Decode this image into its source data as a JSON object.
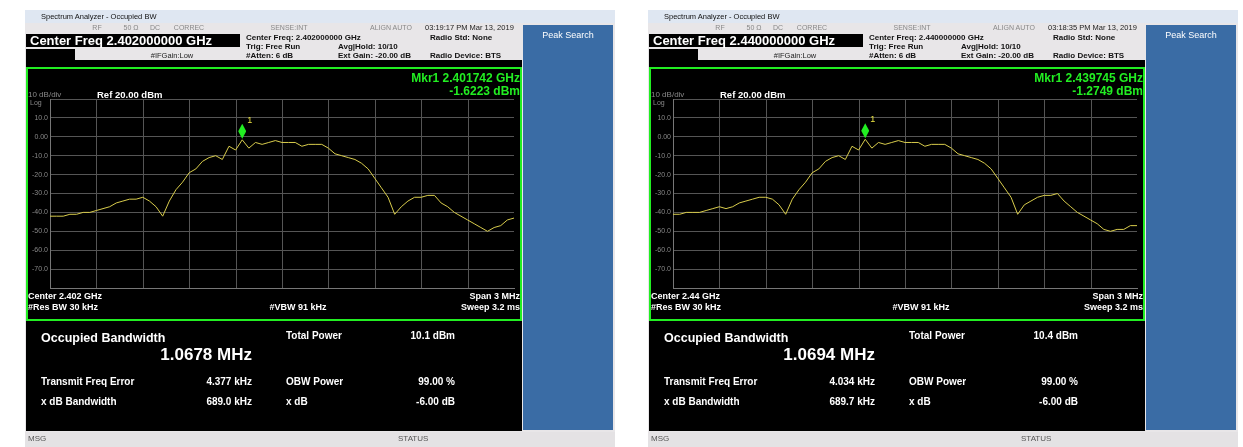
{
  "chart_data": [
    {
      "type": "line",
      "title": "Spectrum Analyzer - Occupied BW",
      "marker": "none",
      "grid": true,
      "ylim": [
        -80,
        20
      ],
      "yticks": [
        {
          "value": 20,
          "label": null
        },
        {
          "value": 10,
          "label": "10.0"
        },
        {
          "value": 0,
          "label": "0.00"
        },
        {
          "value": -10,
          "label": "-10.0"
        },
        {
          "value": -20,
          "label": "-20.0"
        },
        {
          "value": -30,
          "label": "-30.0"
        },
        {
          "value": -40,
          "label": "-40.0"
        },
        {
          "value": -50,
          "label": "-50.0"
        },
        {
          "value": -60,
          "label": "-60.0"
        },
        {
          "value": -70,
          "label": "-70.0"
        },
        {
          "value": -80,
          "label": null
        }
      ],
      "categories": [
        null,
        null,
        null,
        null,
        null,
        null,
        null,
        null,
        null,
        null,
        null,
        null,
        null,
        null,
        null,
        null,
        null,
        null,
        null,
        null,
        null,
        null,
        null,
        null,
        null,
        null,
        null,
        null,
        null,
        null,
        null,
        null,
        null,
        null,
        null,
        null,
        null,
        null,
        null,
        null,
        null,
        null,
        null,
        null,
        null,
        null,
        null,
        null,
        null,
        null,
        null,
        null,
        null,
        null,
        null,
        null,
        null,
        null,
        null,
        null,
        null,
        null,
        null,
        null,
        null,
        null,
        null,
        null,
        null,
        null,
        null
      ],
      "series": [
        {
          "color": "#d8cc4c",
          "values": [
            -42,
            -42,
            -42,
            -41,
            -41,
            -40,
            -40,
            -39,
            -38,
            -37,
            -35,
            -34,
            -33,
            -33,
            -32,
            -34,
            -37,
            -42,
            -34,
            -28,
            -24,
            -19,
            -17,
            -13,
            -11,
            -10,
            -12,
            -5,
            -7,
            -1.6,
            -6,
            -3,
            -4,
            -3,
            -2,
            -3,
            -3,
            -3,
            -5,
            -4,
            -4,
            -4,
            -6,
            -9,
            -10,
            -11,
            -12,
            -14,
            -17,
            -22,
            -27,
            -32,
            -41,
            -37,
            -34,
            -32,
            -32,
            -31,
            -31,
            -35,
            -37,
            -40,
            -42,
            -44,
            -46,
            -48,
            -50,
            -48,
            -47,
            -44,
            -43
          ]
        }
      ],
      "annotations": [
        "RF",
        "50 Ω",
        "DC",
        "CORREC",
        "SENSE:INT",
        "ALIGN AUTO",
        "03:19:17 PM Mar 13, 2019",
        "Center Freq 2.402000000 GHz",
        "#IFGain:Low",
        "Center Freq: 2.402000000 GHz",
        "Trig: Free Run",
        "#Atten: 6 dB",
        "Avg|Hold: 10/10",
        "Ext Gain: -20.00 dB",
        "Radio Std: None",
        "Radio Device: BTS",
        "Peak Search",
        "Mkr1  2.401742 GHz",
        "-1.6223 dBm",
        "10 dB/div",
        "Ref 20.00 dBm",
        "Log",
        "1",
        "Center  2.402 GHz",
        "Span 3 MHz",
        "#Res BW  30 kHz",
        "#VBW  91 kHz",
        "Sweep  3.2 ms",
        "Occupied Bandwidth",
        "1.0678 MHz",
        "Total Power",
        "10.1 dBm",
        "Transmit Freq Error",
        "4.377 kHz",
        "OBW Power",
        "99.00 %",
        "x dB Bandwidth",
        "689.0 kHz",
        "x dB",
        "-6.00 dB",
        "MSG",
        "STATUS"
      ]
    },
    {
      "type": "line",
      "title": "Spectrum Analyzer - Occupied BW",
      "marker": "none",
      "grid": true,
      "ylim": [
        -80,
        20
      ],
      "yticks": [
        {
          "value": 20,
          "label": null
        },
        {
          "value": 10,
          "label": "10.0"
        },
        {
          "value": 0,
          "label": "0.00"
        },
        {
          "value": -10,
          "label": "-10.0"
        },
        {
          "value": -20,
          "label": "-20.0"
        },
        {
          "value": -30,
          "label": "-30.0"
        },
        {
          "value": -40,
          "label": "-40.0"
        },
        {
          "value": -50,
          "label": "-50.0"
        },
        {
          "value": -60,
          "label": "-60.0"
        },
        {
          "value": -70,
          "label": "-70.0"
        },
        {
          "value": -80,
          "label": null
        }
      ],
      "categories": [
        null,
        null,
        null,
        null,
        null,
        null,
        null,
        null,
        null,
        null,
        null,
        null,
        null,
        null,
        null,
        null,
        null,
        null,
        null,
        null,
        null,
        null,
        null,
        null,
        null,
        null,
        null,
        null,
        null,
        null,
        null,
        null,
        null,
        null,
        null,
        null,
        null,
        null,
        null,
        null,
        null,
        null,
        null,
        null,
        null,
        null,
        null,
        null,
        null,
        null,
        null,
        null,
        null,
        null,
        null,
        null,
        null,
        null,
        null,
        null,
        null,
        null,
        null,
        null,
        null,
        null,
        null,
        null,
        null,
        null,
        null
      ],
      "series": [
        {
          "color": "#d8cc4c",
          "values": [
            -41,
            -41,
            -40,
            -40,
            -40,
            -39,
            -38,
            -37,
            -38,
            -37,
            -35,
            -34,
            -33,
            -32,
            -32,
            -33,
            -36,
            -41,
            -33,
            -28,
            -24,
            -19,
            -17,
            -13,
            -11,
            -10,
            -12,
            -5,
            -7,
            -1.3,
            -6,
            -3,
            -4,
            -3,
            -2,
            -3,
            -3,
            -3,
            -5,
            -4,
            -4,
            -4,
            -6,
            -9,
            -10,
            -11,
            -12,
            -14,
            -17,
            -22,
            -27,
            -32,
            -41,
            -36,
            -34,
            -32,
            -31,
            -31,
            -30,
            -34,
            -37,
            -40,
            -42,
            -44,
            -46,
            -49,
            -50,
            -49,
            -49,
            -47,
            -47
          ]
        }
      ],
      "annotations": [
        "RF",
        "50 Ω",
        "DC",
        "CORREC",
        "SENSE:INT",
        "ALIGN AUTO",
        "03:18:35 PM Mar 13, 2019",
        "Center Freq 2.440000000 GHz",
        "#IFGain:Low",
        "Center Freq: 2.440000000 GHz",
        "Trig: Free Run",
        "#Atten: 6 dB",
        "Avg|Hold: 10/10",
        "Ext Gain: -20.00 dB",
        "Radio Std: None",
        "Radio Device: BTS",
        "Peak Search",
        "Mkr1  2.439745 GHz",
        "-1.2749 dBm",
        "10 dB/div",
        "Ref 20.00 dBm",
        "Log",
        "1",
        "Center  2.44 GHz",
        "Span 3 MHz",
        "#Res BW  30 kHz",
        "#VBW  91 kHz",
        "Sweep  3.2 ms",
        "Occupied Bandwidth",
        "1.0694 MHz",
        "Total Power",
        "10.4 dBm",
        "Transmit Freq Error",
        "4.034 kHz",
        "OBW Power",
        "99.00 %",
        "x dB Bandwidth",
        "689.7 kHz",
        "x dB",
        "-6.00 dB",
        "MSG",
        "STATUS"
      ]
    }
  ]
}
